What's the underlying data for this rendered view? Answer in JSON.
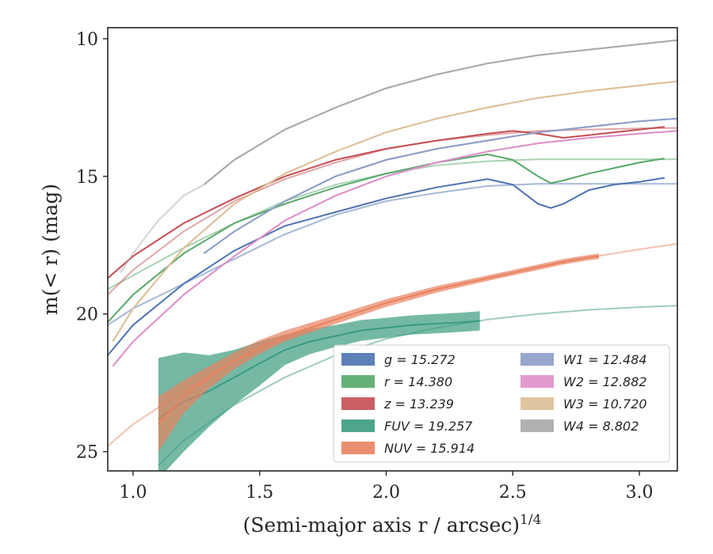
{
  "chart_data": {
    "type": "line",
    "xlabel": "(Semi-major axis r / arcsec)",
    "xlabel_sup": "1/4",
    "ylabel": "m(< r) (mag)",
    "xlim": [
      0.9,
      3.15
    ],
    "ylim": [
      25.7,
      9.6
    ],
    "y_inverted": true,
    "grid": false,
    "legend_position": "lower-right",
    "x_ticks": [
      1.0,
      1.5,
      2.0,
      2.5,
      3.0
    ],
    "x_tick_labels": [
      "1.0",
      "1.5",
      "2.0",
      "2.5",
      "3.0"
    ],
    "y_ticks": [
      10,
      15,
      20,
      25
    ],
    "y_tick_labels": [
      "10",
      "15",
      "20",
      "25"
    ],
    "series": [
      {
        "name": "g = 15.272",
        "color": "#4c72b0",
        "x": [
          0.9,
          1.0,
          1.2,
          1.4,
          1.6,
          1.8,
          2.0,
          2.2,
          2.4,
          2.5,
          2.6,
          2.65,
          2.7,
          2.8,
          2.9,
          3.0,
          3.1
        ],
        "y": [
          21.5,
          20.4,
          18.9,
          17.7,
          16.8,
          16.3,
          15.8,
          15.4,
          15.1,
          15.3,
          16.0,
          16.15,
          16.0,
          15.5,
          15.3,
          15.2,
          15.05
        ],
        "model_x": [
          0.9,
          1.0,
          1.2,
          1.4,
          1.6,
          1.8,
          2.0,
          2.2,
          2.4,
          2.6,
          2.8,
          3.0,
          3.15
        ],
        "model_y": [
          20.4,
          19.8,
          18.9,
          18.0,
          17.1,
          16.4,
          15.9,
          15.6,
          15.35,
          15.27,
          15.27,
          15.27,
          15.27
        ]
      },
      {
        "name": "r = 14.380",
        "color": "#55a868",
        "x": [
          0.9,
          1.0,
          1.2,
          1.4,
          1.6,
          1.8,
          2.0,
          2.2,
          2.4,
          2.5,
          2.6,
          2.65,
          2.7,
          2.8,
          2.9,
          3.0,
          3.1
        ],
        "y": [
          20.3,
          19.3,
          17.8,
          16.7,
          16.0,
          15.4,
          14.9,
          14.5,
          14.2,
          14.4,
          15.0,
          15.25,
          15.15,
          14.9,
          14.7,
          14.5,
          14.35
        ],
        "model_x": [
          0.9,
          1.0,
          1.2,
          1.4,
          1.6,
          1.8,
          2.0,
          2.2,
          2.4,
          2.6,
          2.8,
          3.0,
          3.15
        ],
        "model_y": [
          19.1,
          18.6,
          17.6,
          16.7,
          15.9,
          15.3,
          14.9,
          14.6,
          14.45,
          14.38,
          14.38,
          14.38,
          14.38
        ]
      },
      {
        "name": "z = 13.239",
        "color": "#c44e52",
        "x": [
          0.9,
          1.0,
          1.2,
          1.4,
          1.6,
          1.8,
          2.0,
          2.2,
          2.4,
          2.5,
          2.6,
          2.7,
          2.8,
          2.9,
          3.0,
          3.1
        ],
        "y": [
          18.7,
          17.9,
          16.7,
          15.8,
          15.0,
          14.4,
          14.0,
          13.7,
          13.45,
          13.35,
          13.45,
          13.6,
          13.5,
          13.4,
          13.3,
          13.2
        ],
        "model_x": [
          0.9,
          1.0,
          1.2,
          1.4,
          1.6,
          1.8,
          2.0,
          2.2,
          2.4,
          2.6,
          2.8,
          3.0,
          3.15
        ],
        "model_y": [
          19.3,
          18.4,
          17.0,
          15.9,
          15.1,
          14.5,
          14.0,
          13.7,
          13.5,
          13.35,
          13.3,
          13.26,
          13.24
        ]
      },
      {
        "name": "FUV = 19.257",
        "color": "#3b9b7f",
        "x": [
          1.1,
          1.2,
          1.3,
          1.4,
          1.5,
          1.6,
          1.7,
          1.8,
          1.9,
          2.0,
          2.1,
          2.2,
          2.3,
          2.37
        ],
        "y": [
          23.8,
          23.2,
          22.8,
          22.3,
          21.8,
          21.3,
          21.0,
          20.8,
          20.6,
          20.5,
          20.4,
          20.35,
          20.3,
          20.25
        ],
        "y_err": [
          2.2,
          1.8,
          1.3,
          1.0,
          0.8,
          0.55,
          0.45,
          0.4,
          0.38,
          0.36,
          0.35,
          0.35,
          0.35,
          0.35
        ],
        "model_x": [
          1.1,
          1.2,
          1.4,
          1.6,
          1.8,
          2.0,
          2.2,
          2.4,
          2.6,
          2.8,
          3.0,
          3.15
        ],
        "model_y": [
          25.5,
          24.6,
          23.3,
          22.3,
          21.5,
          20.9,
          20.5,
          20.2,
          20.0,
          19.85,
          19.75,
          19.7
        ]
      },
      {
        "name": "NUV = 15.914",
        "color": "#e8825f",
        "x": [
          1.1,
          1.2,
          1.3,
          1.4,
          1.5,
          1.6,
          1.7,
          1.8,
          1.9,
          2.0,
          2.1,
          2.2,
          2.3,
          2.4,
          2.5,
          2.6,
          2.7,
          2.8,
          2.84
        ],
        "y": [
          24.0,
          23.0,
          22.3,
          21.7,
          21.2,
          20.8,
          20.5,
          20.2,
          19.9,
          19.6,
          19.35,
          19.1,
          18.9,
          18.7,
          18.5,
          18.3,
          18.1,
          17.95,
          17.9
        ],
        "y_err": [
          1.0,
          0.6,
          0.4,
          0.3,
          0.25,
          0.2,
          0.18,
          0.16,
          0.15,
          0.14,
          0.13,
          0.12,
          0.11,
          0.1,
          0.1,
          0.1,
          0.1,
          0.1,
          0.1
        ],
        "model_x": [
          0.9,
          1.0,
          1.2,
          1.4,
          1.6,
          1.8,
          2.0,
          2.2,
          2.4,
          2.6,
          2.8,
          3.0,
          3.15
        ],
        "model_y": [
          24.8,
          24.0,
          22.8,
          21.7,
          20.9,
          20.2,
          19.6,
          19.1,
          18.7,
          18.3,
          17.95,
          17.65,
          17.45
        ]
      },
      {
        "name": "W1 = 12.484",
        "color": "#8c9cc8",
        "x": [
          1.28,
          1.4,
          1.6,
          1.8,
          2.0,
          2.2,
          2.4,
          2.6,
          2.8,
          3.0,
          3.15
        ],
        "y": [
          17.8,
          17.0,
          15.9,
          15.0,
          14.4,
          14.0,
          13.7,
          13.4,
          13.2,
          13.0,
          12.9
        ],
        "model_x": [
          1.28,
          1.4,
          1.6,
          1.8,
          2.0,
          2.2,
          2.4,
          2.6,
          2.8,
          3.0,
          3.15
        ],
        "model_y": [
          17.8,
          17.0,
          15.9,
          15.0,
          14.4,
          14.0,
          13.7,
          13.4,
          13.2,
          13.0,
          12.9
        ]
      },
      {
        "name": "W2 = 12.882",
        "color": "#de8fc8",
        "x": [
          0.92,
          1.0,
          1.2,
          1.4,
          1.6,
          1.8,
          2.0,
          2.2,
          2.4,
          2.6,
          2.8,
          3.0,
          3.15
        ],
        "y": [
          21.9,
          21.0,
          19.3,
          17.9,
          16.6,
          15.7,
          15.0,
          14.5,
          14.1,
          13.8,
          13.6,
          13.45,
          13.35
        ],
        "model_x": [
          0.92,
          1.0,
          1.2,
          1.4,
          1.6,
          1.8,
          2.0,
          2.2,
          2.4,
          2.6,
          2.8,
          3.0,
          3.15
        ],
        "model_y": [
          21.9,
          21.0,
          19.3,
          17.9,
          16.6,
          15.7,
          15.0,
          14.5,
          14.1,
          13.8,
          13.6,
          13.45,
          13.35
        ]
      },
      {
        "name": "W3 = 10.720",
        "color": "#dcbf96",
        "x": [
          0.92,
          1.0,
          1.2,
          1.4,
          1.6,
          1.8,
          2.0,
          2.2,
          2.4,
          2.6,
          2.8,
          3.0,
          3.15
        ],
        "y": [
          21.0,
          19.8,
          17.6,
          16.0,
          14.9,
          14.1,
          13.4,
          12.9,
          12.5,
          12.15,
          11.9,
          11.7,
          11.55
        ],
        "model_x": [
          0.92,
          1.0,
          1.2,
          1.4,
          1.6,
          1.8,
          2.0,
          2.2,
          2.4,
          2.6,
          2.8,
          3.0,
          3.15
        ],
        "model_y": [
          21.0,
          19.8,
          17.6,
          16.0,
          14.9,
          14.1,
          13.4,
          12.9,
          12.5,
          12.15,
          11.9,
          11.7,
          11.55
        ]
      },
      {
        "name": "W4 = 8.802",
        "color": "#a8a8a8",
        "x": [
          1.28,
          1.4,
          1.6,
          1.8,
          2.0,
          2.2,
          2.4,
          2.6,
          2.8,
          3.0,
          3.15
        ],
        "y": [
          15.3,
          14.4,
          13.3,
          12.5,
          11.8,
          11.3,
          10.9,
          10.6,
          10.4,
          10.2,
          10.05
        ],
        "model_x": [
          0.95,
          1.0,
          1.1,
          1.2,
          1.28,
          1.4,
          1.6,
          1.8,
          2.0,
          2.2,
          2.4,
          2.6,
          2.8,
          3.0,
          3.15
        ],
        "model_y": [
          18.5,
          17.8,
          16.6,
          15.7,
          15.3,
          14.4,
          13.3,
          12.5,
          11.8,
          11.3,
          10.9,
          10.6,
          10.4,
          10.2,
          10.05
        ]
      }
    ]
  }
}
